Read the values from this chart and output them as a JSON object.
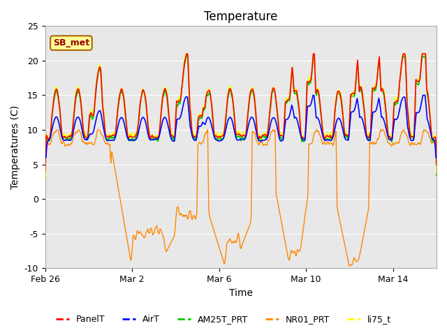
{
  "title": "Temperature",
  "xlabel": "Time",
  "ylabel": "Temperatures (C)",
  "ylim": [
    -10,
    25
  ],
  "xlim": [
    0,
    18
  ],
  "x_tick_labels": [
    "Feb 26",
    "Mar 2",
    "Mar 6",
    "Mar 10",
    "Mar 14"
  ],
  "x_tick_pos": [
    0,
    4,
    8,
    12,
    16
  ],
  "y_tick_labels": [
    "-10",
    "-5",
    "0",
    "5",
    "10",
    "15",
    "20",
    "25"
  ],
  "y_tick_vals": [
    -10,
    -5,
    0,
    5,
    10,
    15,
    20,
    25
  ],
  "background_color": "#ffffff",
  "plot_bg_color": "#e8e8e8",
  "colors": {
    "PanelT": "#ff0000",
    "AirT": "#0000ff",
    "AM25T_PRT": "#00cc00",
    "NR01_PRT": "#ff8800",
    "li75_t": "#ffff00"
  },
  "annotation_text": "SB_met",
  "annotation_bg": "#ffff99",
  "annotation_border": "#aa6600",
  "annotation_text_color": "#990000",
  "legend_entries": [
    "PanelT",
    "AirT",
    "AM25T_PRT",
    "NR01_PRT",
    "li75_t"
  ],
  "grid_color": "#ffffff",
  "title_fontsize": 12,
  "axis_label_fontsize": 10,
  "tick_fontsize": 9
}
